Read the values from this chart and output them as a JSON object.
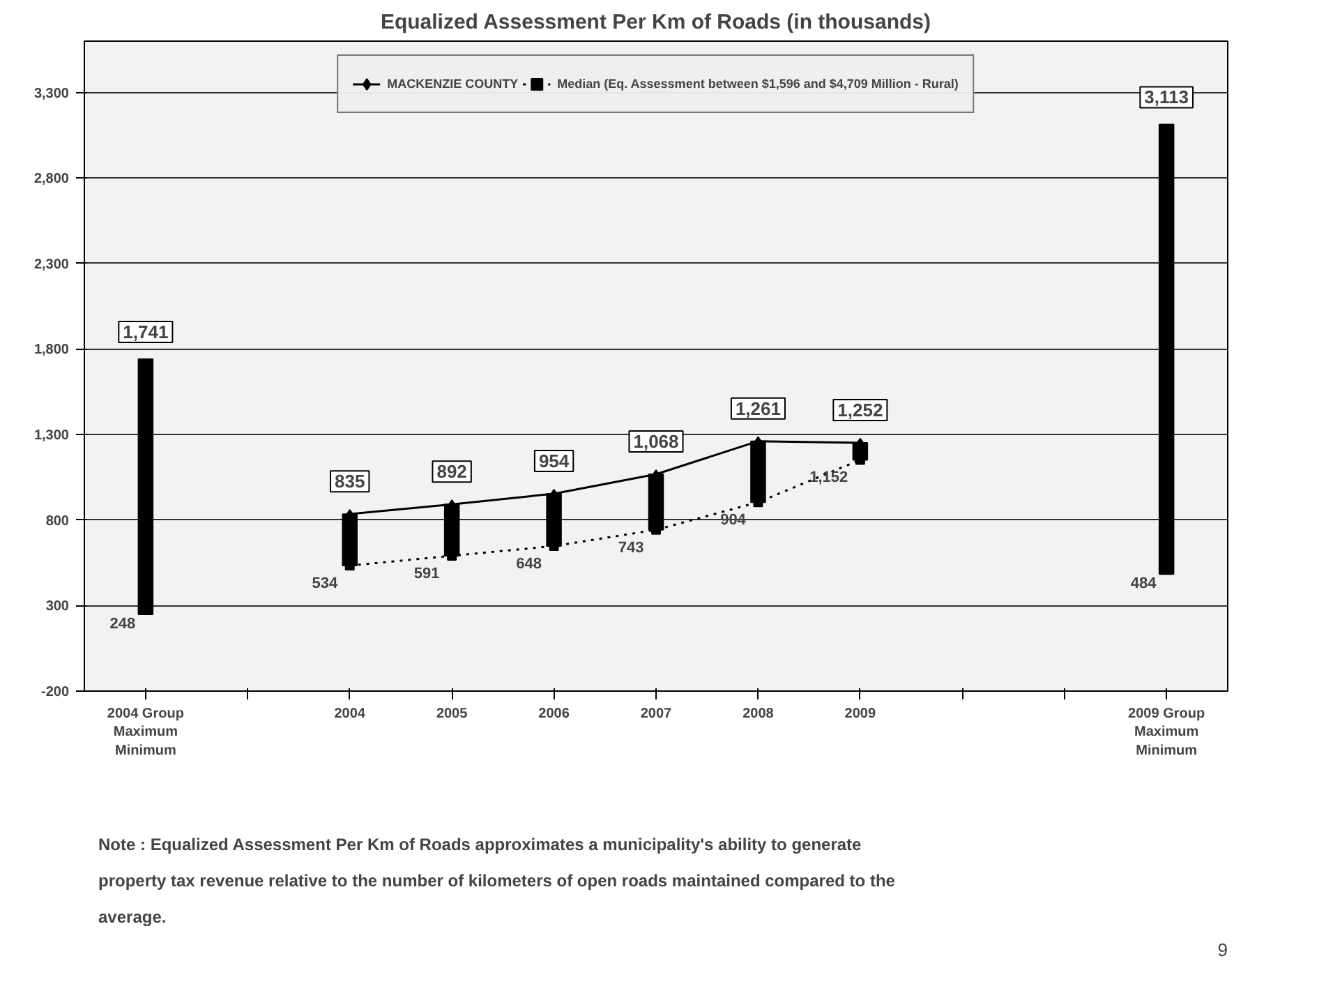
{
  "chart_data": {
    "type": "bar",
    "title": "Equalized Assessment Per Km of Roads (in thousands)",
    "categories": [
      "2004 Group\nMaximum\nMinimum",
      null,
      "2004",
      "2005",
      "2006",
      "2007",
      "2008",
      "2009",
      null,
      null,
      "2009 Group\nMaximum\nMinimum"
    ],
    "series": [
      {
        "type": "bar",
        "color": "#000000",
        "base": [
          248,
          null,
          534,
          591,
          648,
          743,
          904,
          1152,
          null,
          null,
          484
        ],
        "values": [
          1493,
          null,
          301,
          301,
          306,
          325,
          357,
          100,
          null,
          null,
          2629
        ]
      },
      {
        "type": "line",
        "name": "MACKENZIE COUNTY",
        "color": "#000000",
        "line_style": "solid",
        "marker": "diamond",
        "values": [
          null,
          null,
          835,
          892,
          954,
          1068,
          1261,
          1252,
          null,
          null,
          null
        ],
        "value_labels": [
          null,
          null,
          "835",
          "892",
          "954",
          "1,068",
          "1,261",
          "1,252",
          null,
          null,
          null
        ]
      },
      {
        "type": "line",
        "name": "Median (Eq. Assessment between $1,596 and $4,709 Million - Rural)",
        "color": "#000000",
        "line_style": "dotted",
        "marker": "square",
        "values": [
          null,
          null,
          534,
          591,
          648,
          743,
          904,
          1152,
          null,
          null,
          null
        ],
        "value_labels": [
          null,
          null,
          "534",
          "591",
          "648",
          "743",
          "904",
          "1,152",
          null,
          null,
          null
        ]
      }
    ],
    "ylim": [
      -200,
      3600
    ],
    "yticks": [
      {
        "value": -200,
        "label": "-200"
      },
      300,
      {
        "value": 800,
        "label": "800"
      },
      {
        "value": 1300,
        "label": "1,300"
      },
      {
        "value": 1800,
        "label": "1,800"
      },
      {
        "value": 2300,
        "label": "2,300"
      },
      {
        "value": 2800,
        "label": "2,800"
      },
      {
        "value": 3300,
        "label": "3,300"
      }
    ],
    "grid": "y",
    "legend": "top",
    "annotations": [
      {
        "text": "1,741",
        "x": "2004 Group\nMaximum\nMinimum",
        "y": 1741
      },
      {
        "text": "248",
        "x": "2004 Group\nMaximum\nMinimum",
        "y": 248
      },
      {
        "text": "3,113",
        "x": "2009 Group\nMaximum\nMinimum",
        "y": 3113
      },
      {
        "text": "484",
        "x": "2009 Group\nMaximum\nMinimum",
        "y": 484
      },
      "Note : Equalized Assessment Per Km of Roads approximates a municipality's ability to generate property tax revenue relative to the number of kilometers of open roads maintained compared to the average.",
      "9"
    ]
  }
}
